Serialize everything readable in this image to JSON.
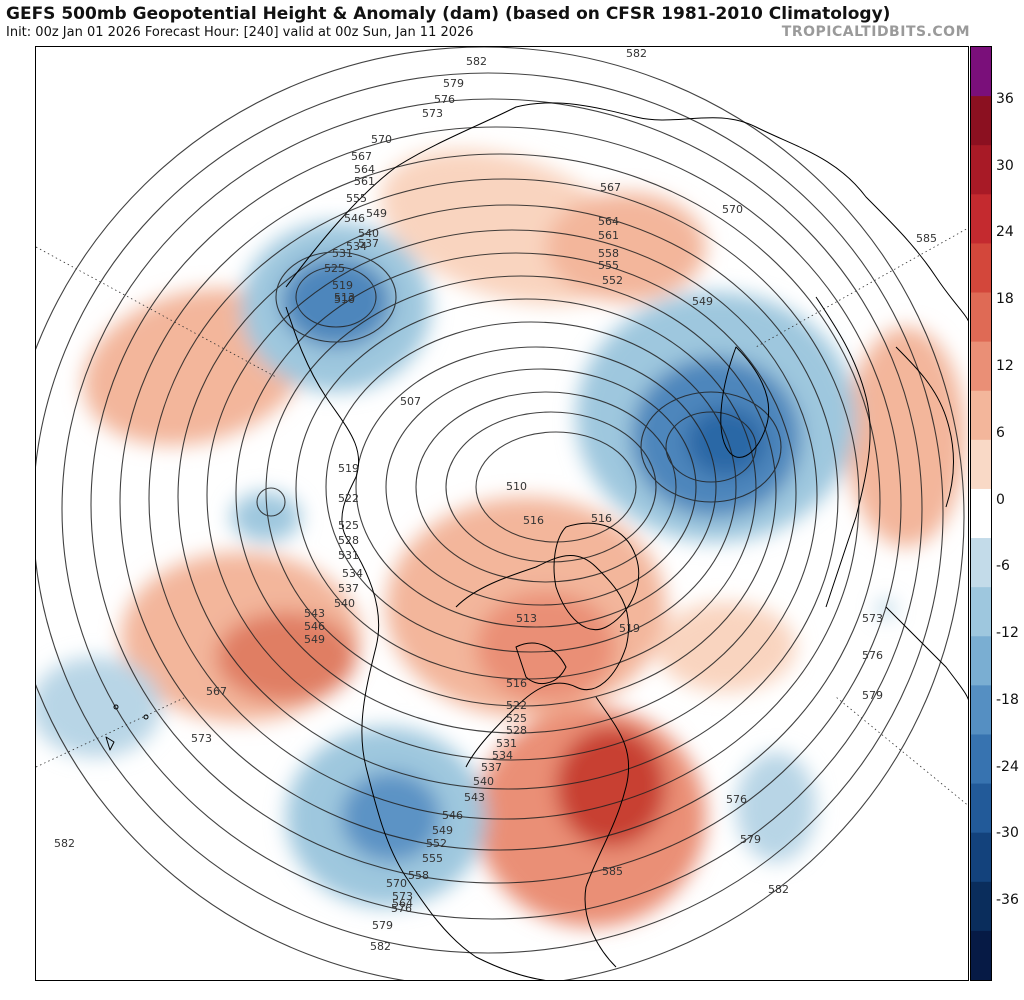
{
  "header": {
    "title": "GEFS 500mb Geopotential Height & Anomaly (dam) (based on CFSR 1981-2010 Climatology)",
    "subtitle": "Init: 00z Jan 01 2026   Forecast Hour: [240]   valid at 00z Sun, Jan 11 2026",
    "brand": "TROPICALTIDBITS.COM"
  },
  "colorbar": {
    "ticks": [
      "36",
      "30",
      "24",
      "18",
      "12",
      "6",
      "0",
      "-6",
      "-12",
      "-18",
      "-24",
      "-30",
      "-36"
    ],
    "colors": [
      "#7a0f7a",
      "#8b1020",
      "#a81a26",
      "#c42a2f",
      "#d3473b",
      "#df6a55",
      "#ea8f76",
      "#f3b69b",
      "#f9d9c6",
      "#ffffff",
      "#c3dbe9",
      "#9ec7de",
      "#7aaed2",
      "#558fc2",
      "#3773b0",
      "#225a99",
      "#13427c",
      "#0a2d5c",
      "#061a45"
    ]
  },
  "map": {
    "contour_labels": [
      "582",
      "579",
      "576",
      "573",
      "570",
      "567",
      "564",
      "561",
      "555",
      "549",
      "546",
      "540",
      "537",
      "534",
      "531",
      "525",
      "519",
      "513",
      "510",
      "507",
      "519",
      "522",
      "525",
      "528",
      "531",
      "534",
      "537",
      "540",
      "543",
      "546",
      "549",
      "567",
      "573",
      "582",
      "510",
      "516",
      "513",
      "519",
      "516",
      "522",
      "525",
      "528",
      "531",
      "534",
      "537",
      "540",
      "543",
      "546",
      "549",
      "552",
      "555",
      "558",
      "564",
      "570",
      "573",
      "576",
      "579",
      "582",
      "585",
      "576",
      "579",
      "582",
      "573",
      "576",
      "579",
      "585",
      "567",
      "564",
      "561",
      "558",
      "555",
      "552",
      "549",
      "570",
      "582",
      "516"
    ]
  }
}
